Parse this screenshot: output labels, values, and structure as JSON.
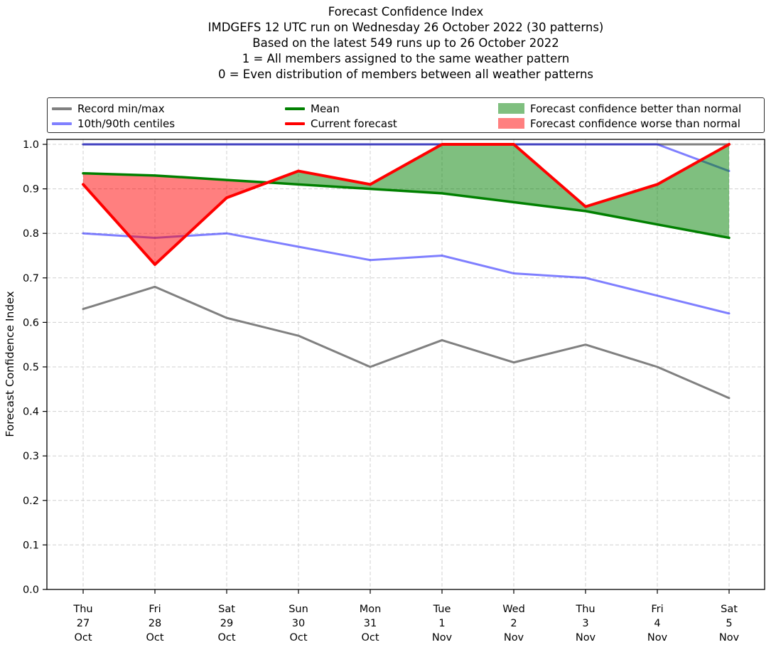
{
  "legend": {
    "items": [
      {
        "label": "Record min/max",
        "swatch": "line",
        "color": "#808080"
      },
      {
        "label": "10th/90th centiles",
        "swatch": "line",
        "color": "#8080ff"
      },
      {
        "label": "Mean",
        "swatch": "line",
        "color": "#008000"
      },
      {
        "label": "Current forecast",
        "swatch": "line",
        "color": "#ff0000"
      },
      {
        "label": "Forecast confidence better than normal",
        "swatch": "patch",
        "color": "#7fbf7f"
      },
      {
        "label": "Forecast confidence worse than normal",
        "swatch": "patch",
        "color": "#ff7f7f"
      }
    ],
    "columns": [
      [
        0,
        1
      ],
      [
        2,
        3
      ],
      [
        4,
        5
      ]
    ]
  },
  "chart_data": {
    "type": "line",
    "title_lines": [
      "Forecast Confidence Index",
      "IMDGEFS 12 UTC run on Wednesday 26 October 2022 (30 patterns)",
      "Based on the latest 549 runs up to 26 October 2022",
      "1 = All members assigned to the same weather pattern",
      "0 = Even distribution of members between all weather patterns"
    ],
    "ylabel": "Forecast Confidence Index",
    "ylim": [
      0.0,
      1.0
    ],
    "yticks": [
      "0.0",
      "0.1",
      "0.2",
      "0.3",
      "0.4",
      "0.5",
      "0.6",
      "0.7",
      "0.8",
      "0.9",
      "1.0"
    ],
    "grid": true,
    "legend_position": "top",
    "categories": [
      [
        "Thu",
        "27",
        "Oct"
      ],
      [
        "Fri",
        "28",
        "Oct"
      ],
      [
        "Sat",
        "29",
        "Oct"
      ],
      [
        "Sun",
        "30",
        "Oct"
      ],
      [
        "Mon",
        "31",
        "Oct"
      ],
      [
        "Tue",
        "1",
        "Nov"
      ],
      [
        "Wed",
        "2",
        "Nov"
      ],
      [
        "Thu",
        "3",
        "Nov"
      ],
      [
        "Fri",
        "4",
        "Nov"
      ],
      [
        "Sat",
        "5",
        "Nov"
      ]
    ],
    "series": [
      {
        "name": "Record max",
        "color": "#808080",
        "width": 3,
        "values": [
          1.0,
          1.0,
          1.0,
          1.0,
          1.0,
          1.0,
          1.0,
          1.0,
          1.0,
          1.0
        ]
      },
      {
        "name": "Record min",
        "color": "#808080",
        "width": 3,
        "values": [
          0.63,
          0.68,
          0.61,
          0.57,
          0.5,
          0.56,
          0.51,
          0.55,
          0.5,
          0.43
        ]
      },
      {
        "name": "90th centile",
        "color": "rgba(0,0,255,0.5)",
        "width": 3,
        "values": [
          1.0,
          1.0,
          1.0,
          1.0,
          1.0,
          1.0,
          1.0,
          1.0,
          1.0,
          0.94
        ]
      },
      {
        "name": "10th centile",
        "color": "rgba(0,0,255,0.5)",
        "width": 3,
        "values": [
          0.8,
          0.79,
          0.8,
          0.77,
          0.74,
          0.75,
          0.71,
          0.7,
          0.66,
          0.62
        ]
      },
      {
        "name": "Mean",
        "color": "#008000",
        "width": 3.5,
        "values": [
          0.935,
          0.93,
          0.92,
          0.91,
          0.9,
          0.89,
          0.87,
          0.85,
          0.82,
          0.79
        ]
      },
      {
        "name": "Current forecast",
        "color": "#ff0000",
        "width": 4,
        "values": [
          0.91,
          0.73,
          0.88,
          0.94,
          0.91,
          1.0,
          1.0,
          0.86,
          0.91,
          1.0
        ]
      }
    ],
    "fill_between": {
      "upper": "Current forecast",
      "lower": "Mean",
      "above_color": "rgba(0,128,0,0.5)",
      "below_color": "rgba(255,0,0,0.5)",
      "insert_before": "Mean"
    }
  }
}
